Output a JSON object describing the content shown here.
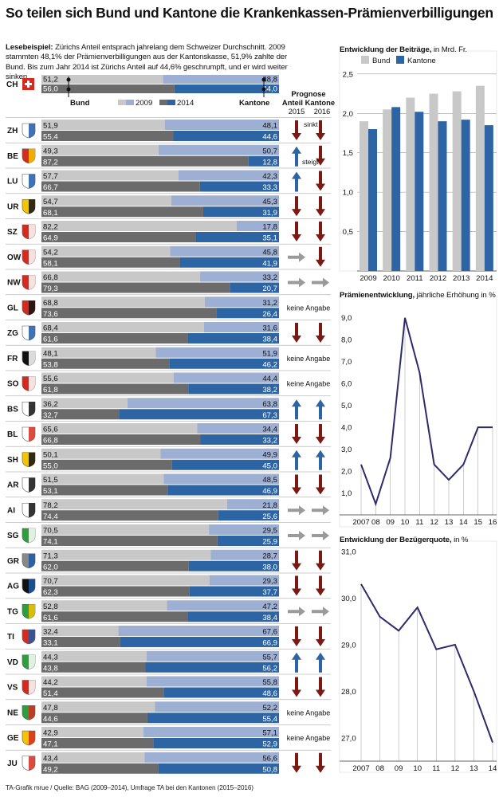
{
  "title": "So teilen sich Bund und Kantone die Krankenkassen-Prämienverbilligungen",
  "lesebeispiel_label": "Lesebeispiel:",
  "lesebeispiel_text": " Zürichs Anteil entsprach jahrelang dem Schweizer Durchschnitt. 2009 stammten 48,1% der Prämienverbilligungen aus der Kantonskasse, 51,9% zahlte der Bund. Bis zum Jahr 2014 ist Zürichs Anteil auf 44,6% geschrumpft, und er wird weiter sinken.",
  "legend": {
    "bund": "Bund",
    "kantone": "Kantone",
    "y2009": "2009",
    "y2014": "2014"
  },
  "prognose_title_1": "Prognose",
  "prognose_title_2": "Anteil Kantone",
  "prognose_years": [
    "2015",
    "2016"
  ],
  "sinkt_label": "sinkt",
  "steigt_label": "steigt",
  "keine_angabe": "keine Angabe",
  "source": "TA-Grafik mrue / Quelle: BAG (2009–2014), Umfrage TA bei den Kantonen (2015–2016)",
  "colors": {
    "bund_2009": "#c8c8c8",
    "bund_2014": "#6b6b6b",
    "kanton_2009": "#9dafd2",
    "kanton_2014": "#2d64a3",
    "arrow_down": "#7a1a14",
    "arrow_up": "#2d64a3",
    "arrow_flat": "#9a9a9a",
    "line": "#2f2a6b"
  },
  "chart_data": [
    {
      "type": "bar",
      "layout": "100% stacked horizontal, two bars per canton (2009 top, 2014 bottom)",
      "series_labels": [
        "Bund",
        "Kantone"
      ],
      "years": [
        "2009",
        "2014"
      ],
      "rows": [
        {
          "code": "CH",
          "bund": [
            "51,2",
            "56,0"
          ],
          "kanton": [
            "48,8",
            "44,0"
          ],
          "prognose": null
        },
        {
          "code": "ZH",
          "bund": [
            "51,9",
            "55,4"
          ],
          "kanton": [
            "48,1",
            "44,6"
          ],
          "prognose": [
            "down",
            "down"
          ]
        },
        {
          "code": "BE",
          "bund": [
            "49,3",
            "87,2"
          ],
          "kanton": [
            "50,7",
            "12,8"
          ],
          "prognose": [
            "up",
            "down"
          ]
        },
        {
          "code": "LU",
          "bund": [
            "57,7",
            "66,7"
          ],
          "kanton": [
            "42,3",
            "33,3"
          ],
          "prognose": [
            "up",
            "down"
          ]
        },
        {
          "code": "UR",
          "bund": [
            "54,7",
            "68,1"
          ],
          "kanton": [
            "45,3",
            "31,9"
          ],
          "prognose": [
            "down",
            "down"
          ]
        },
        {
          "code": "SZ",
          "bund": [
            "82,2",
            "64,9"
          ],
          "kanton": [
            "17,8",
            "35,1"
          ],
          "prognose": [
            "down",
            "down"
          ]
        },
        {
          "code": "OW",
          "bund": [
            "54,2",
            "58,1"
          ],
          "kanton": [
            "45,8",
            "41,9"
          ],
          "prognose": [
            "flat",
            "down"
          ]
        },
        {
          "code": "NW",
          "bund": [
            "66,8",
            "79,3"
          ],
          "kanton": [
            "33,2",
            "20,7"
          ],
          "prognose": [
            "flat",
            "flat"
          ]
        },
        {
          "code": "GL",
          "bund": [
            "68,8",
            "73,6"
          ],
          "kanton": [
            "31,2",
            "26,4"
          ],
          "prognose": "na"
        },
        {
          "code": "ZG",
          "bund": [
            "68,4",
            "61,6"
          ],
          "kanton": [
            "31,6",
            "38,4"
          ],
          "prognose": [
            "down",
            "down"
          ]
        },
        {
          "code": "FR",
          "bund": [
            "48,1",
            "53,8"
          ],
          "kanton": [
            "51,9",
            "46,2"
          ],
          "prognose": "na"
        },
        {
          "code": "SO",
          "bund": [
            "55,6",
            "61,8"
          ],
          "kanton": [
            "44,4",
            "38,2"
          ],
          "prognose": "na"
        },
        {
          "code": "BS",
          "bund": [
            "36,2",
            "32,7"
          ],
          "kanton": [
            "63,8",
            "67,3"
          ],
          "prognose": [
            "up",
            "up"
          ]
        },
        {
          "code": "BL",
          "bund": [
            "65,6",
            "66,8"
          ],
          "kanton": [
            "34,4",
            "33,2"
          ],
          "prognose": [
            "down",
            "down"
          ]
        },
        {
          "code": "SH",
          "bund": [
            "50,1",
            "55,0"
          ],
          "kanton": [
            "49,9",
            "45,0"
          ],
          "prognose": [
            "up",
            "up"
          ]
        },
        {
          "code": "AR",
          "bund": [
            "51,5",
            "53,1"
          ],
          "kanton": [
            "48,5",
            "46,9"
          ],
          "prognose": [
            "down",
            "down"
          ]
        },
        {
          "code": "AI",
          "bund": [
            "78,2",
            "74,4"
          ],
          "kanton": [
            "21,8",
            "25,6"
          ],
          "prognose": [
            "flat",
            "flat"
          ]
        },
        {
          "code": "SG",
          "bund": [
            "70,5",
            "74,1"
          ],
          "kanton": [
            "29,5",
            "25,9"
          ],
          "prognose": [
            "flat",
            "flat"
          ]
        },
        {
          "code": "GR",
          "bund": [
            "71,3",
            "62,0"
          ],
          "kanton": [
            "28,7",
            "38,0"
          ],
          "prognose": [
            "down",
            "down"
          ]
        },
        {
          "code": "AG",
          "bund": [
            "70,7",
            "62,3"
          ],
          "kanton": [
            "29,3",
            "37,7"
          ],
          "prognose": [
            "down",
            "down"
          ]
        },
        {
          "code": "TG",
          "bund": [
            "52,8",
            "61,6"
          ],
          "kanton": [
            "47,2",
            "38,4"
          ],
          "prognose": [
            "flat",
            "flat"
          ]
        },
        {
          "code": "TI",
          "bund": [
            "32,4",
            "33,1"
          ],
          "kanton": [
            "67,6",
            "66,9"
          ],
          "prognose": [
            "down",
            "down"
          ]
        },
        {
          "code": "VD",
          "bund": [
            "44,3",
            "43,8"
          ],
          "kanton": [
            "55,7",
            "56,2"
          ],
          "prognose": [
            "up",
            "up"
          ]
        },
        {
          "code": "VS",
          "bund": [
            "44,2",
            "51,4"
          ],
          "kanton": [
            "55,8",
            "48,6"
          ],
          "prognose": [
            "down",
            "down"
          ]
        },
        {
          "code": "NE",
          "bund": [
            "47,8",
            "44,6"
          ],
          "kanton": [
            "52,2",
            "55,4"
          ],
          "prognose": "na"
        },
        {
          "code": "GE",
          "bund": [
            "42,9",
            "47,1"
          ],
          "kanton": [
            "57,1",
            "52,9"
          ],
          "prognose": "na"
        },
        {
          "code": "JU",
          "bund": [
            "43,4",
            "49,2"
          ],
          "kanton": [
            "56,6",
            "50,8"
          ],
          "prognose": [
            "down",
            "down"
          ]
        }
      ]
    },
    {
      "type": "bar",
      "title": "Entwicklung der Beiträge,",
      "title_unit": " in Mrd. Fr.",
      "categories": [
        "2009",
        "2010",
        "2011",
        "2012",
        "2013",
        "2014"
      ],
      "series": [
        {
          "name": "Bund",
          "values": [
            1.9,
            2.05,
            2.2,
            2.25,
            2.28,
            2.35
          ]
        },
        {
          "name": "Kantone",
          "values": [
            1.8,
            2.08,
            2.02,
            1.9,
            1.92,
            1.85
          ]
        }
      ],
      "yticks": [
        "0,5",
        "1,0",
        "1,5",
        "2,0",
        "2,5"
      ],
      "ylim": [
        0,
        2.65
      ]
    },
    {
      "type": "line",
      "title": "Prämienentwicklung,",
      "title_unit": " jährliche Erhöhung in %",
      "x": [
        "2007",
        "08",
        "09",
        "10",
        "11",
        "12",
        "13",
        "14",
        "15",
        "16"
      ],
      "values": [
        2.3,
        0.5,
        2.6,
        9.0,
        6.5,
        2.3,
        1.6,
        2.3,
        4.0,
        4.0
      ],
      "yticks": [
        "1,0",
        "2,0",
        "3,0",
        "4,0",
        "5,0",
        "6,0",
        "7,0",
        "8,0",
        "9,0"
      ],
      "ylim": [
        0,
        9.5
      ]
    },
    {
      "type": "line",
      "title": "Entwicklung der Bezügerquote,",
      "title_unit": " in %",
      "x": [
        "2007",
        "08",
        "09",
        "10",
        "11",
        "12",
        "13",
        "14"
      ],
      "values": [
        30.3,
        29.6,
        29.3,
        29.8,
        28.9,
        29.0,
        28.0,
        26.9
      ],
      "yticks": [
        "27,0",
        "28,0",
        "29,0",
        "30,0",
        "31,0"
      ],
      "ylim": [
        26.5,
        31.0
      ]
    }
  ]
}
